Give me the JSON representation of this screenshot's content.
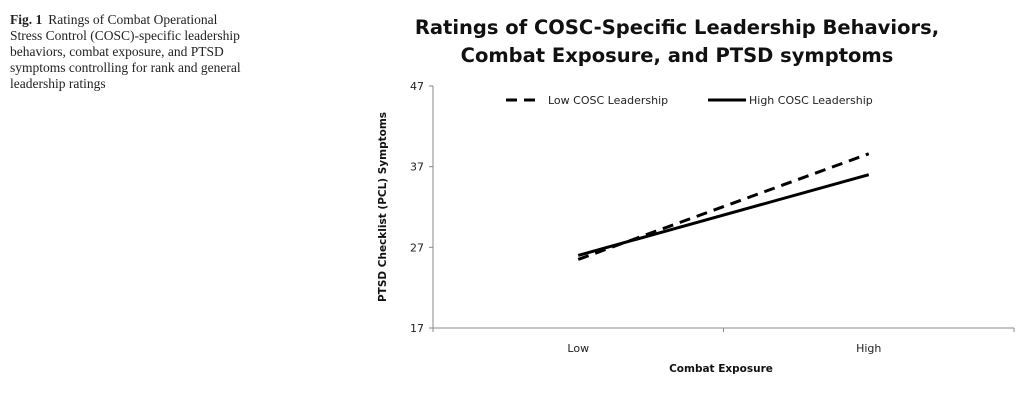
{
  "caption": {
    "fig_label": "Fig. 1",
    "text": "Ratings of Combat Operational Stress Control (COSC)-specific leadership behaviors, combat exposure, and PTSD symptoms controlling for rank and general leadership ratings"
  },
  "chart_data": {
    "type": "line",
    "title_lines": [
      "Ratings of COSC-Specific Leadership Behaviors,",
      "Combat Exposure, and PTSD symptoms"
    ],
    "xlabel": "Combat Exposure",
    "ylabel": "PTSD Checklist (PCL) Symptoms",
    "categories": [
      "Low",
      "High"
    ],
    "ylim": [
      17,
      47
    ],
    "yticks": [
      17,
      27,
      37,
      47
    ],
    "grid": false,
    "legend_position": "top",
    "series": [
      {
        "name": "Low COSC Leadership",
        "style": "dashed",
        "color": "#000000",
        "values": [
          25.5,
          38.6
        ]
      },
      {
        "name": "High COSC Leadership",
        "style": "solid",
        "color": "#000000",
        "values": [
          26.0,
          36.0
        ]
      }
    ]
  }
}
